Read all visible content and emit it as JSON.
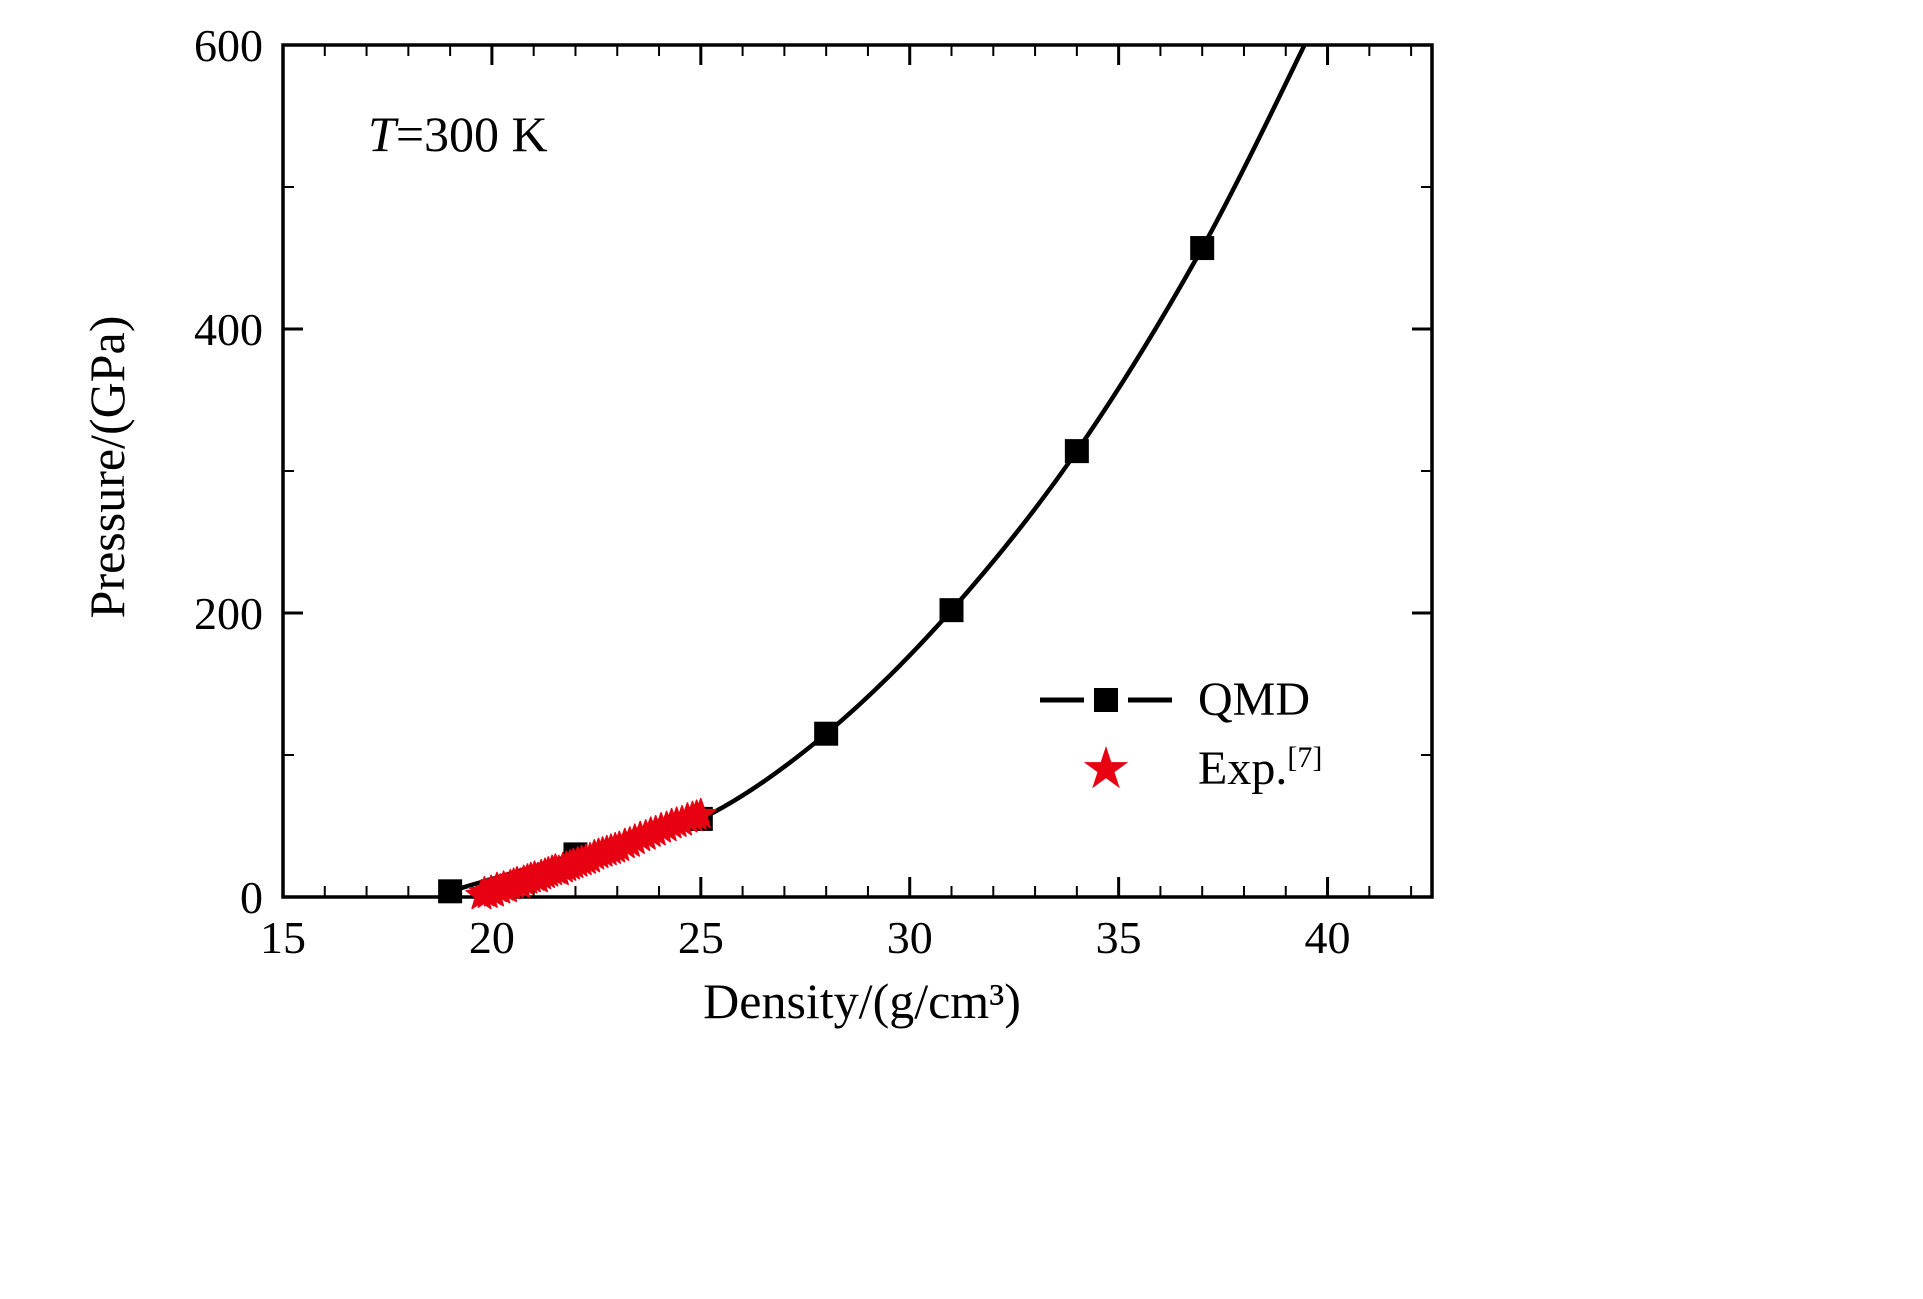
{
  "figure": {
    "background": "#ffffff",
    "annotation": {
      "italic": "T",
      "text": "=300 K"
    },
    "x_axis": {
      "label": "Density/(g/cm³)",
      "ticks": [
        15,
        20,
        25,
        30,
        35,
        40
      ],
      "range": [
        15,
        42.5
      ],
      "minor_step": 1
    },
    "y_axis": {
      "label": "Pressure/(GPa)",
      "ticks": [
        0,
        200,
        400,
        600
      ],
      "range": [
        0,
        600
      ],
      "minor_step": 100
    },
    "legend": [
      {
        "label": "QMD"
      },
      {
        "label": "Exp.",
        "sup": "[7]"
      }
    ]
  },
  "chart_data": {
    "type": "line",
    "title": "",
    "xlabel": "Density/(g/cm³)",
    "ylabel": "Pressure/(GPa)",
    "xlim": [
      15,
      42.5
    ],
    "ylim": [
      0,
      600
    ],
    "annotation": "T=300 K",
    "legend_position": "inside-lower-right",
    "grid": false,
    "series": [
      {
        "name": "QMD",
        "color": "#000000",
        "marker": "square",
        "points": [
          [
            19,
            4
          ],
          [
            22,
            30
          ],
          [
            25,
            55
          ],
          [
            28,
            115
          ],
          [
            31,
            202
          ],
          [
            34,
            314
          ],
          [
            37,
            457
          ]
        ],
        "line_extension": [
          [
            39.7,
            615
          ]
        ]
      },
      {
        "name": "Exp.[7]",
        "color": "#e60012",
        "marker": "star",
        "points": [
          [
            19.75,
            1
          ],
          [
            19.82,
            3
          ],
          [
            19.9,
            2
          ],
          [
            19.98,
            4
          ],
          [
            20.05,
            3
          ],
          [
            20.12,
            6
          ],
          [
            20.2,
            5
          ],
          [
            20.28,
            7
          ],
          [
            20.36,
            6
          ],
          [
            20.44,
            8
          ],
          [
            20.52,
            9
          ],
          [
            20.6,
            10
          ],
          [
            20.68,
            9
          ],
          [
            20.76,
            11
          ],
          [
            20.85,
            12
          ],
          [
            20.93,
            13
          ],
          [
            21.02,
            14
          ],
          [
            21.1,
            13
          ],
          [
            21.18,
            15
          ],
          [
            21.27,
            16
          ],
          [
            21.35,
            17
          ],
          [
            21.44,
            18
          ],
          [
            21.52,
            19
          ],
          [
            21.6,
            18
          ],
          [
            21.7,
            20
          ],
          [
            21.78,
            21
          ],
          [
            21.87,
            22
          ],
          [
            21.95,
            23
          ],
          [
            22.05,
            24
          ],
          [
            22.15,
            25
          ],
          [
            22.25,
            26
          ],
          [
            22.35,
            27
          ],
          [
            22.45,
            29
          ],
          [
            22.55,
            30
          ],
          [
            22.65,
            31
          ],
          [
            22.75,
            32
          ],
          [
            22.85,
            33
          ],
          [
            22.95,
            34
          ],
          [
            23.05,
            35
          ],
          [
            23.18,
            37
          ],
          [
            23.3,
            38
          ],
          [
            23.42,
            40
          ],
          [
            23.55,
            42
          ],
          [
            23.68,
            43
          ],
          [
            23.8,
            45
          ],
          [
            23.92,
            46
          ],
          [
            24.05,
            48
          ],
          [
            24.18,
            49
          ],
          [
            24.3,
            51
          ],
          [
            24.42,
            52
          ],
          [
            24.55,
            53
          ],
          [
            24.68,
            55
          ],
          [
            24.8,
            56
          ],
          [
            24.9,
            57
          ],
          [
            25.0,
            58
          ]
        ]
      }
    ]
  }
}
